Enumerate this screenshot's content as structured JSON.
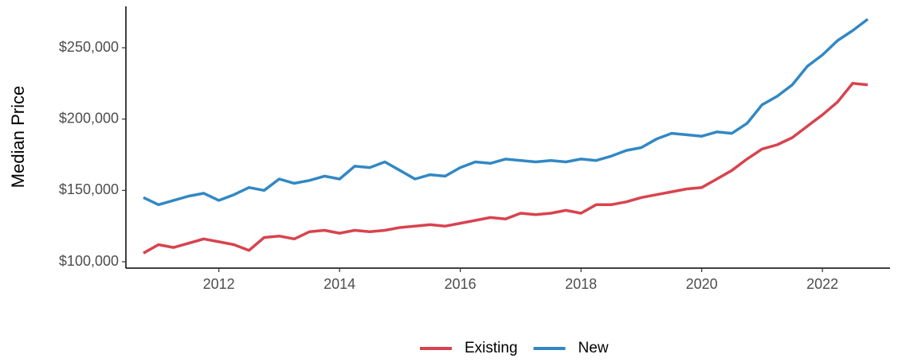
{
  "chart_data": {
    "type": "line",
    "y_label": "Median Price",
    "x": [
      2010.75,
      2011.0,
      2011.25,
      2011.5,
      2011.75,
      2012.0,
      2012.25,
      2012.5,
      2012.75,
      2013.0,
      2013.25,
      2013.5,
      2013.75,
      2014.0,
      2014.25,
      2014.5,
      2014.75,
      2015.0,
      2015.25,
      2015.5,
      2015.75,
      2016.0,
      2016.25,
      2016.5,
      2016.75,
      2017.0,
      2017.25,
      2017.5,
      2017.75,
      2018.0,
      2018.25,
      2018.5,
      2018.75,
      2019.0,
      2019.25,
      2019.5,
      2019.75,
      2020.0,
      2020.25,
      2020.5,
      2020.75,
      2021.0,
      2021.25,
      2021.5,
      2021.75,
      2022.0,
      2022.25,
      2022.5,
      2022.75
    ],
    "series": [
      {
        "name": "Existing",
        "color": "#d8434e",
        "values": [
          106000,
          112000,
          110000,
          113000,
          116000,
          114000,
          112000,
          108000,
          117000,
          118000,
          116000,
          121000,
          122000,
          120000,
          122000,
          121000,
          122000,
          124000,
          125000,
          126000,
          125000,
          127000,
          129000,
          131000,
          130000,
          134000,
          133000,
          134000,
          136000,
          134000,
          140000,
          140000,
          142000,
          145000,
          147000,
          149000,
          151000,
          152000,
          158000,
          164000,
          172000,
          179000,
          182000,
          187000,
          195000,
          203000,
          212000,
          225000,
          224000
        ]
      },
      {
        "name": "New",
        "color": "#3188c4",
        "values": [
          145000,
          140000,
          143000,
          146000,
          148000,
          143000,
          147000,
          152000,
          150000,
          158000,
          155000,
          157000,
          160000,
          158000,
          167000,
          166000,
          170000,
          164000,
          158000,
          161000,
          160000,
          166000,
          170000,
          169000,
          172000,
          171000,
          170000,
          171000,
          170000,
          172000,
          171000,
          174000,
          178000,
          180000,
          186000,
          190000,
          189000,
          188000,
          191000,
          190000,
          197000,
          210000,
          216000,
          224000,
          237000,
          245000,
          255000,
          262000,
          270000
        ]
      }
    ],
    "xlim": [
      2010.46,
      2023.12
    ],
    "xticks": [
      2012,
      2014,
      2016,
      2018,
      2020,
      2022
    ],
    "ylim": [
      95540,
      279000
    ],
    "yticks": [
      {
        "value": 100000,
        "label": "$100,000"
      },
      {
        "value": 150000,
        "label": "$150,000"
      },
      {
        "value": 200000,
        "label": "$200,000"
      },
      {
        "value": 250000,
        "label": "$250,000"
      }
    ],
    "legend": "bottom",
    "grid": false
  }
}
